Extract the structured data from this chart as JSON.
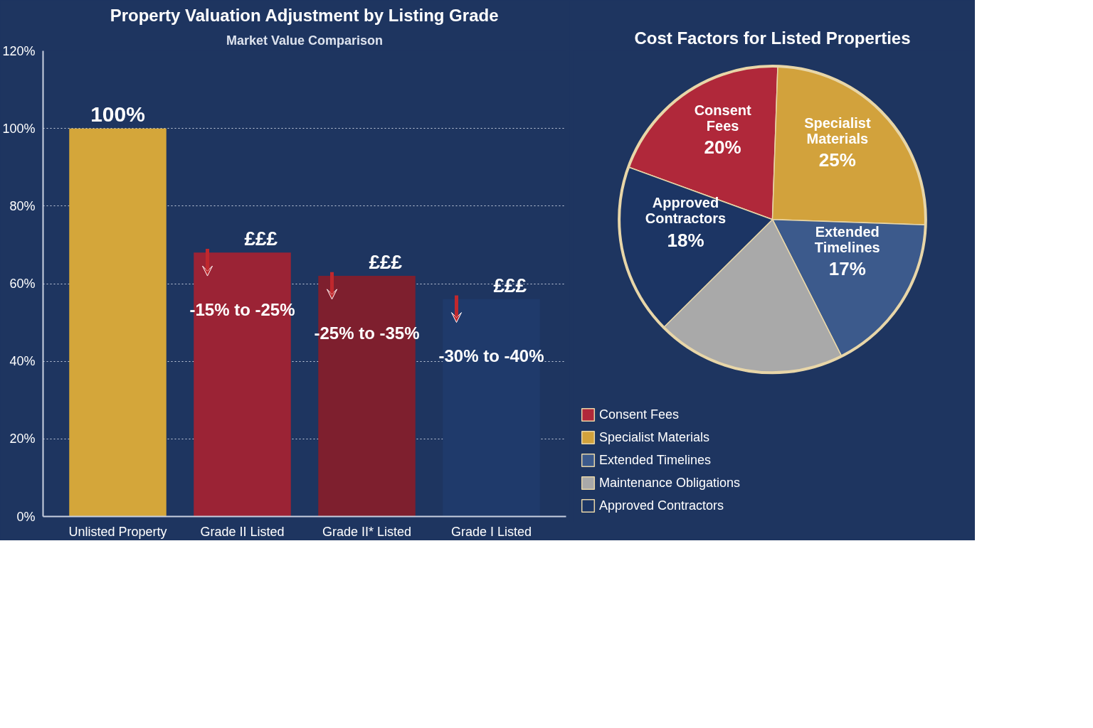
{
  "chart_data": [
    {
      "type": "bar",
      "title": "Property Valuation Adjustment by Listing Grade",
      "subtitle": "Market Value Comparison",
      "categories": [
        "Unlisted Property",
        "Grade II Listed",
        "Grade II* Listed",
        "Grade I Listed"
      ],
      "values": [
        100,
        68,
        62,
        56
      ],
      "colors": [
        "#d4a63a",
        "#9b2335",
        "#7e1f2e",
        "#1f3a6b"
      ],
      "value_labels": [
        "100%",
        null,
        null,
        null
      ],
      "ylim": [
        0,
        120
      ],
      "yticks": [
        {
          "value": 0,
          "label": "0%"
        },
        {
          "value": 20,
          "label": "20%"
        },
        {
          "value": 40,
          "label": "40%"
        },
        {
          "value": 60,
          "label": "60%"
        },
        {
          "value": 80,
          "label": "80%"
        },
        {
          "value": 100,
          "label": "100%"
        },
        {
          "value": 120,
          "label": "120%"
        }
      ],
      "grid": "y",
      "annotations": [
        {
          "text": "£££",
          "x": "Grade II Listed",
          "y": 68
        },
        {
          "text": "£££",
          "x": "Grade II* Listed",
          "y": 62
        },
        {
          "text": "£££",
          "x": "Grade I Listed",
          "y": 56
        },
        {
          "text": "-15% to -25%",
          "x": "Grade II Listed",
          "y": 68
        },
        {
          "text": "-25% to -35%",
          "x": "Grade II* Listed",
          "y": 62
        },
        {
          "text": "-30% to -40%",
          "x": "Grade I Listed",
          "y": 56
        }
      ]
    },
    {
      "type": "pie",
      "title": "Cost Factors for Listed Properties",
      "categories": [
        "Consent Fees",
        "Specialist Materials",
        "Extended Timelines",
        "Maintenance Obligations",
        "Approved Contractors"
      ],
      "values": [
        20,
        25,
        17,
        20,
        18
      ],
      "colors": [
        "#b0283a",
        "#d2a23c",
        "#3c5a8c",
        "#a9a9a9",
        "#1c3564"
      ],
      "value_labels": [
        "20%",
        "25%",
        "17%",
        null,
        "18%"
      ],
      "legend": "bottom left"
    }
  ]
}
